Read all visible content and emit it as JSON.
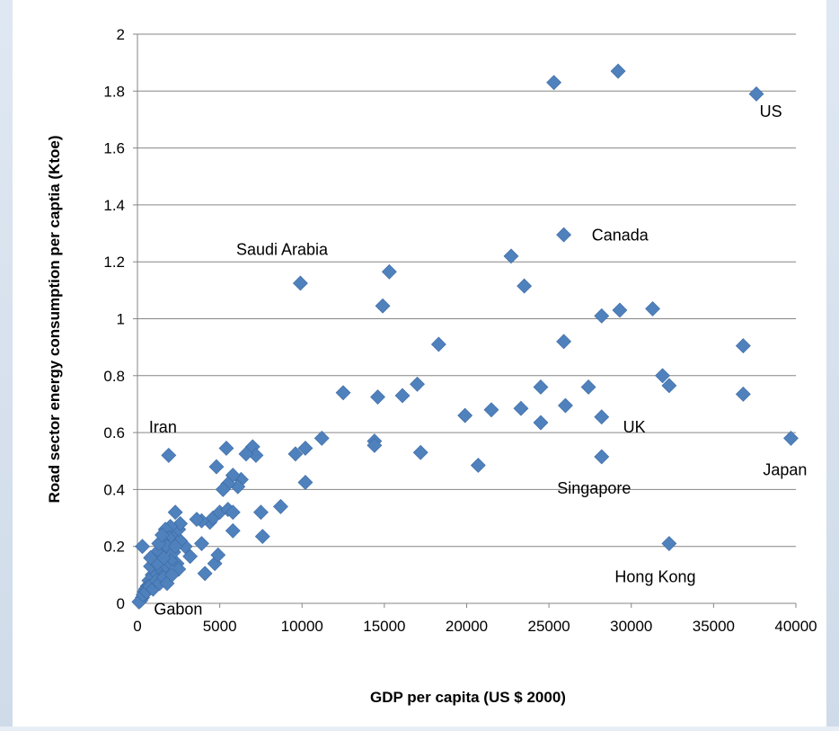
{
  "chart_data": {
    "type": "scatter",
    "title": "",
    "xlabel": "GDP per capita (US $ 2000)",
    "ylabel": "Road sector energy consumption per captia (Ktoe)",
    "xlim": [
      0,
      40000
    ],
    "ylim": [
      0,
      2
    ],
    "xticks": [
      0,
      5000,
      10000,
      15000,
      20000,
      25000,
      30000,
      35000,
      40000
    ],
    "xtick_labels": [
      "0",
      "5000",
      "10000",
      "15000",
      "20000",
      "25000",
      "30000",
      "35000",
      "40000"
    ],
    "yticks": [
      0,
      0.2,
      0.4,
      0.6,
      0.8,
      1,
      1.2,
      1.4,
      1.6,
      1.8,
      2
    ],
    "ytick_labels": [
      "0",
      "0.2",
      "0.4",
      "0.6",
      "0.8",
      "1",
      "1.2",
      "1.4",
      "1.6",
      "1.8",
      "2"
    ],
    "grid": "horizontal",
    "marker": "diamond",
    "marker_color": "#4f81bd",
    "points": [
      [
        25300,
        1.83
      ],
      [
        29200,
        1.87
      ],
      [
        37600,
        1.79
      ],
      [
        25900,
        1.295
      ],
      [
        22700,
        1.22
      ],
      [
        23500,
        1.115
      ],
      [
        15300,
        1.165
      ],
      [
        14900,
        1.045
      ],
      [
        9900,
        1.125
      ],
      [
        29300,
        1.03
      ],
      [
        31300,
        1.035
      ],
      [
        28200,
        1.01
      ],
      [
        18300,
        0.91
      ],
      [
        25900,
        0.92
      ],
      [
        36800,
        0.905
      ],
      [
        31900,
        0.8
      ],
      [
        32300,
        0.765
      ],
      [
        36800,
        0.735
      ],
      [
        12500,
        0.74
      ],
      [
        14600,
        0.725
      ],
      [
        16100,
        0.73
      ],
      [
        17000,
        0.77
      ],
      [
        24500,
        0.76
      ],
      [
        27400,
        0.76
      ],
      [
        21500,
        0.68
      ],
      [
        23300,
        0.685
      ],
      [
        26000,
        0.695
      ],
      [
        19900,
        0.66
      ],
      [
        24500,
        0.635
      ],
      [
        28200,
        0.655
      ],
      [
        39700,
        0.58
      ],
      [
        28200,
        0.515
      ],
      [
        20700,
        0.485
      ],
      [
        32300,
        0.21
      ],
      [
        14400,
        0.57
      ],
      [
        14400,
        0.555
      ],
      [
        17200,
        0.53
      ],
      [
        11200,
        0.58
      ],
      [
        10200,
        0.545
      ],
      [
        9600,
        0.525
      ],
      [
        10200,
        0.425
      ],
      [
        8700,
        0.34
      ],
      [
        7500,
        0.32
      ],
      [
        7600,
        0.235
      ],
      [
        1900,
        0.52
      ],
      [
        5400,
        0.545
      ],
      [
        7000,
        0.55
      ],
      [
        7200,
        0.52
      ],
      [
        6600,
        0.525
      ],
      [
        6300,
        0.435
      ],
      [
        5800,
        0.45
      ],
      [
        6100,
        0.41
      ],
      [
        5500,
        0.42
      ],
      [
        5200,
        0.4
      ],
      [
        4800,
        0.48
      ],
      [
        4400,
        0.285
      ],
      [
        4600,
        0.3
      ],
      [
        5000,
        0.32
      ],
      [
        5500,
        0.33
      ],
      [
        5800,
        0.32
      ],
      [
        5800,
        0.255
      ],
      [
        3900,
        0.29
      ],
      [
        3600,
        0.295
      ],
      [
        3900,
        0.21
      ],
      [
        4100,
        0.105
      ],
      [
        4700,
        0.14
      ],
      [
        4900,
        0.17
      ],
      [
        3200,
        0.165
      ],
      [
        2900,
        0.2
      ],
      [
        2600,
        0.22
      ],
      [
        2300,
        0.32
      ],
      [
        2200,
        0.25
      ],
      [
        2500,
        0.26
      ],
      [
        2600,
        0.28
      ],
      [
        2000,
        0.27
      ],
      [
        1700,
        0.26
      ],
      [
        1900,
        0.23
      ],
      [
        1500,
        0.22
      ],
      [
        1400,
        0.19
      ],
      [
        1200,
        0.18
      ],
      [
        1800,
        0.2
      ],
      [
        2200,
        0.18
      ],
      [
        2400,
        0.14
      ],
      [
        2500,
        0.12
      ],
      [
        2000,
        0.15
      ],
      [
        1700,
        0.13
      ],
      [
        1500,
        0.12
      ],
      [
        1300,
        0.1
      ],
      [
        1100,
        0.12
      ],
      [
        900,
        0.1
      ],
      [
        800,
        0.13
      ],
      [
        700,
        0.08
      ],
      [
        600,
        0.06
      ],
      [
        500,
        0.05
      ],
      [
        400,
        0.04
      ],
      [
        300,
        0.02
      ],
      [
        200,
        0.01
      ],
      [
        100,
        0.005
      ],
      [
        350,
        0.03
      ],
      [
        550,
        0.04
      ],
      [
        750,
        0.06
      ],
      [
        950,
        0.05
      ],
      [
        1150,
        0.08
      ],
      [
        1350,
        0.07
      ],
      [
        1600,
        0.09
      ],
      [
        1800,
        0.07
      ],
      [
        1000,
        0.15
      ],
      [
        1200,
        0.14
      ],
      [
        1600,
        0.16
      ],
      [
        2100,
        0.1
      ],
      [
        300,
        0.2
      ],
      [
        800,
        0.16
      ],
      [
        1300,
        0.21
      ],
      [
        1500,
        0.24
      ],
      [
        2300,
        0.2
      ]
    ],
    "annotations": [
      {
        "text": "US",
        "x": 37800,
        "y": 1.71
      },
      {
        "text": "Canada",
        "x": 27600,
        "y": 1.275
      },
      {
        "text": "Saudi Arabia",
        "x": 6000,
        "y": 1.225
      },
      {
        "text": "Iran",
        "x": 700,
        "y": 0.6
      },
      {
        "text": "UK",
        "x": 29500,
        "y": 0.6
      },
      {
        "text": "Japan",
        "x": 38000,
        "y": 0.45
      },
      {
        "text": "Singapore",
        "x": 25500,
        "y": 0.385
      },
      {
        "text": "Hong Kong",
        "x": 29000,
        "y": 0.075
      },
      {
        "text": "Gabon",
        "x": 1000,
        "y": -0.04
      }
    ]
  }
}
